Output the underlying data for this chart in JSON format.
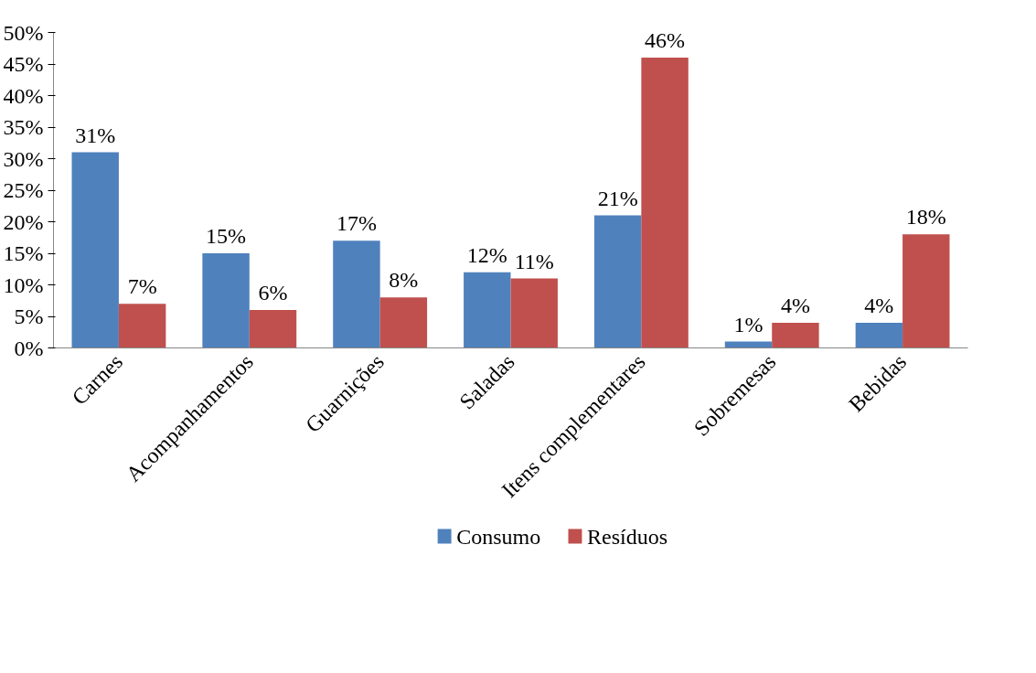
{
  "chart_data": {
    "type": "bar",
    "categories": [
      "Carnes",
      "Acompanhamentos",
      "Guarnições",
      "Saladas",
      "Itens complementares",
      "Sobremesas",
      "Bebidas"
    ],
    "series": [
      {
        "name": "Consumo",
        "color": "#4f81bd",
        "values": [
          31,
          15,
          17,
          12,
          21,
          1,
          4
        ],
        "value_labels": [
          "31%",
          "15%",
          "17%",
          "12%",
          "21%",
          "1%",
          "4%"
        ]
      },
      {
        "name": "Resíduos",
        "color": "#c0504d",
        "values": [
          7,
          6,
          8,
          11,
          46,
          4,
          18
        ],
        "value_labels": [
          "7%",
          "6%",
          "8%",
          "11%",
          "46%",
          "4%",
          "18%"
        ]
      }
    ],
    "ylim": [
      0,
      50
    ],
    "yticks": [
      {
        "value": 0,
        "label": "0%"
      },
      {
        "value": 5,
        "label": "5%"
      },
      {
        "value": 10,
        "label": "10%"
      },
      {
        "value": 15,
        "label": "15%"
      },
      {
        "value": 20,
        "label": "20%"
      },
      {
        "value": 25,
        "label": "25%"
      },
      {
        "value": 30,
        "label": "30%"
      },
      {
        "value": 35,
        "label": "35%"
      },
      {
        "value": 40,
        "label": "40%"
      },
      {
        "value": 45,
        "label": "45%"
      },
      {
        "value": 50,
        "label": "50%"
      }
    ],
    "grid": false,
    "legend": "bottom"
  }
}
